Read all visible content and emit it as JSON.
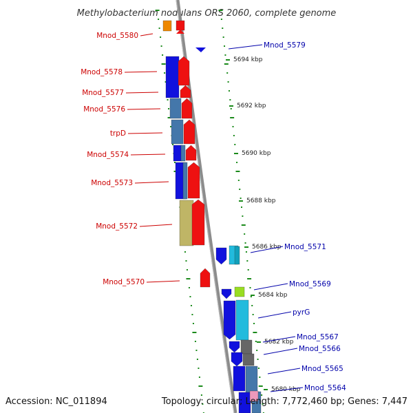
{
  "title": "Methylobacterium nodulans ORS 2060, complete genome",
  "accession": "Accession: NC_011894",
  "topology": "Topology: circular; Length: 7,772,460 bp; Genes: 7,447",
  "colors": {
    "left_label": "#cc0000",
    "right_label": "#0000aa",
    "backbone": "#8c8c8c",
    "tick": "#1a8a1a",
    "gene_red": "#ee1111",
    "gene_blue": "#1111dd",
    "gene_steel": "#4477aa",
    "gene_khaki": "#bfb566",
    "gene_cyan": "#22bbdd",
    "gene_orange": "#ee8800",
    "gene_green": "#99dd22",
    "gene_gray": "#666666",
    "gene_pink": "#ee99bb"
  },
  "scale_kbp": [
    {
      "label": "5694 kbp"
    },
    {
      "label": "5692 kbp"
    },
    {
      "label": "5690 kbp"
    },
    {
      "label": "5688 kbp"
    },
    {
      "label": "5686 kbp"
    },
    {
      "label": "5684 kbp"
    },
    {
      "label": "5682 kbp"
    },
    {
      "label": "5680 kbp"
    }
  ],
  "left_genes": [
    {
      "name": "Mnod_5580"
    },
    {
      "name": "Mnod_5578"
    },
    {
      "name": "Mnod_5577"
    },
    {
      "name": "Mnod_5576"
    },
    {
      "name": "trpD"
    },
    {
      "name": "Mnod_5574"
    },
    {
      "name": "Mnod_5573"
    },
    {
      "name": "Mnod_5572"
    },
    {
      "name": "Mnod_5570"
    }
  ],
  "right_genes": [
    {
      "name": "Mnod_5579"
    },
    {
      "name": "Mnod_5571"
    },
    {
      "name": "Mnod_5569"
    },
    {
      "name": "pyrG"
    },
    {
      "name": "Mnod_5567"
    },
    {
      "name": "Mnod_5566"
    },
    {
      "name": "Mnod_5565"
    },
    {
      "name": "Mnod_5564"
    }
  ]
}
